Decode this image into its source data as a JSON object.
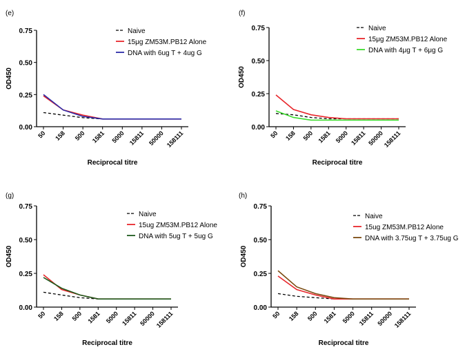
{
  "colors": {
    "naive": "#000000",
    "pb12": "#e8262b",
    "dna_e": "#2b2ba8",
    "dna_f": "#3ddc2e",
    "dna_g": "#1c5a1c",
    "dna_h": "#7a4a10"
  },
  "chart_data": [
    {
      "type": "line",
      "panel": "(e)",
      "categories": [
        "50",
        "158",
        "500",
        "1581",
        "5000",
        "15811",
        "50000",
        "158111"
      ],
      "ylim": [
        0,
        0.75
      ],
      "yticks": [
        "0.00",
        "0.25",
        "0.50",
        "0.75"
      ],
      "xlabel": "Reciprocal titre",
      "ylabel": "OD450",
      "legend_position": "top-right",
      "series": [
        {
          "name": "Naive",
          "color": "#000000",
          "dash": true,
          "values": [
            0.11,
            0.09,
            0.07,
            0.06,
            0.06,
            0.06,
            0.06,
            0.06
          ]
        },
        {
          "name": "15μg ZM53M.PB12 Alone",
          "color": "#e8262b",
          "dash": false,
          "values": [
            0.24,
            0.13,
            0.09,
            0.06,
            0.06,
            0.06,
            0.06,
            0.06
          ]
        },
        {
          "name": "DNA with 6ug T + 4ug G",
          "color": "#2b2ba8",
          "dash": false,
          "values": [
            0.25,
            0.13,
            0.08,
            0.06,
            0.06,
            0.06,
            0.06,
            0.06
          ]
        }
      ]
    },
    {
      "type": "line",
      "panel": "(f)",
      "categories": [
        "50",
        "158",
        "500",
        "1581",
        "5000",
        "15811",
        "50000",
        "158111"
      ],
      "ylim": [
        0,
        0.75
      ],
      "yticks": [
        "0.00",
        "0.25",
        "0.50",
        "0.75"
      ],
      "xlabel": "Reciprocal titre",
      "ylabel": "OD450",
      "legend_position": "top-right",
      "series": [
        {
          "name": "Naive",
          "color": "#000000",
          "dash": true,
          "values": [
            0.1,
            0.09,
            0.07,
            0.06,
            0.06,
            0.06,
            0.06,
            0.06
          ]
        },
        {
          "name": "15μg ZM53M.PB12 Alone",
          "color": "#e8262b",
          "dash": false,
          "values": [
            0.24,
            0.13,
            0.09,
            0.07,
            0.06,
            0.06,
            0.06,
            0.06
          ]
        },
        {
          "name": "DNA with 4μg T + 6μg G",
          "color": "#3ddc2e",
          "dash": false,
          "values": [
            0.12,
            0.07,
            0.05,
            0.05,
            0.05,
            0.05,
            0.05,
            0.05
          ]
        }
      ]
    },
    {
      "type": "line",
      "panel": "(g)",
      "categories": [
        "50",
        "158",
        "500",
        "1581",
        "5000",
        "15811",
        "50000",
        "158111"
      ],
      "ylim": [
        0,
        0.75
      ],
      "yticks": [
        "0.00",
        "0.25",
        "0.50",
        "0.75"
      ],
      "xlabel": "Reciprocal titre",
      "ylabel": "OD450",
      "legend_position": "top-right",
      "series": [
        {
          "name": "Naive",
          "color": "#000000",
          "dash": true,
          "values": [
            0.11,
            0.09,
            0.07,
            0.06,
            0.06,
            0.06,
            0.06,
            0.06
          ]
        },
        {
          "name": "15ug ZM53M.PB12 Alone",
          "color": "#e8262b",
          "dash": false,
          "values": [
            0.24,
            0.13,
            0.09,
            0.06,
            0.06,
            0.06,
            0.06,
            0.06
          ]
        },
        {
          "name": "DNA with 5ug T + 5ug G",
          "color": "#1c5a1c",
          "dash": false,
          "values": [
            0.22,
            0.14,
            0.09,
            0.06,
            0.06,
            0.06,
            0.06,
            0.06
          ]
        }
      ]
    },
    {
      "type": "line",
      "panel": "(h)",
      "categories": [
        "50",
        "158",
        "500",
        "1581",
        "5000",
        "15811",
        "50000",
        "158111"
      ],
      "ylim": [
        0,
        0.75
      ],
      "yticks": [
        "0.00",
        "0.25",
        "0.50",
        "0.75"
      ],
      "xlabel": "Reciprocal titre",
      "ylabel": "OD450",
      "legend_position": "top-right",
      "series": [
        {
          "name": "Naive",
          "color": "#000000",
          "dash": true,
          "values": [
            0.1,
            0.08,
            0.07,
            0.06,
            0.06,
            0.06,
            0.06,
            0.06
          ]
        },
        {
          "name": "15ug ZM53M.PB12 Alone",
          "color": "#e8262b",
          "dash": false,
          "values": [
            0.23,
            0.13,
            0.09,
            0.06,
            0.06,
            0.06,
            0.06,
            0.06
          ]
        },
        {
          "name": "DNA with 3.75ug T + 3.75ug G",
          "color": "#7a4a10",
          "dash": false,
          "values": [
            0.27,
            0.15,
            0.1,
            0.07,
            0.06,
            0.06,
            0.06,
            0.06
          ]
        }
      ]
    }
  ]
}
